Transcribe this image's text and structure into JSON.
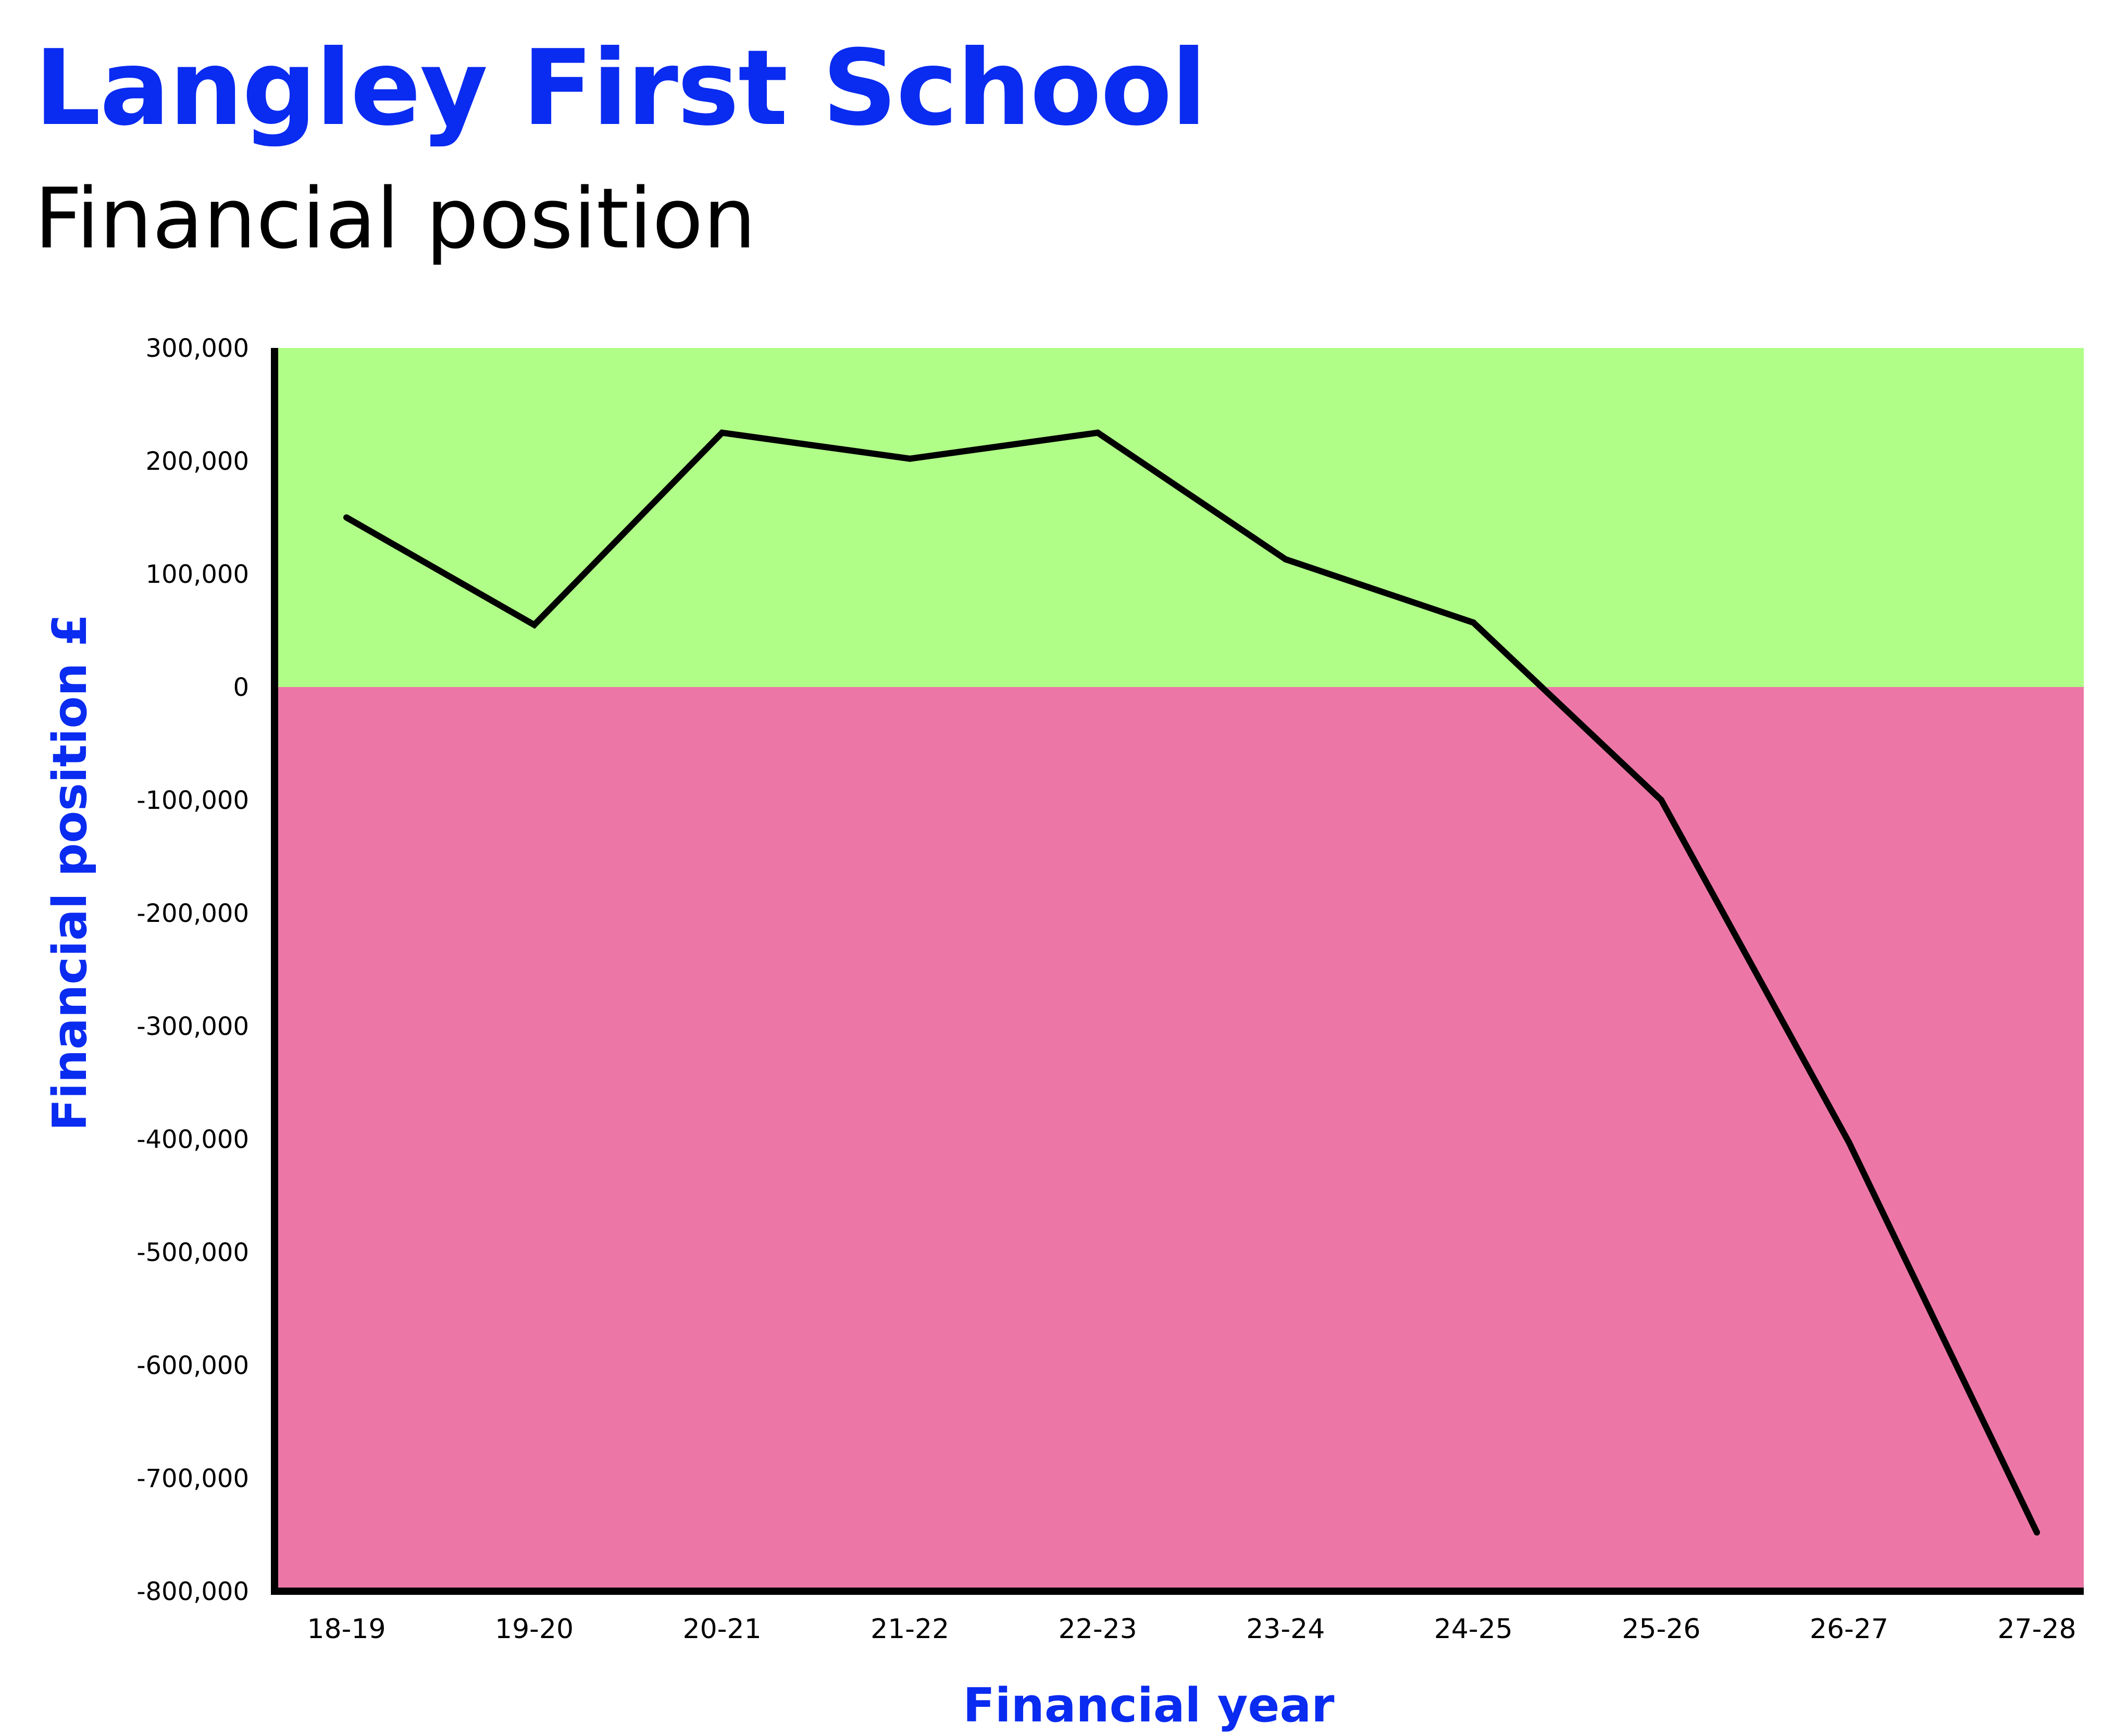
{
  "header": {
    "title": "Langley First School",
    "subtitle": "Financial position"
  },
  "colors": {
    "title": "#0a2bf0",
    "positive_zone": "#b0fe87",
    "negative_zone": "#ec77a7",
    "line": "#000000",
    "axis": "#000000"
  },
  "chart_data": {
    "type": "line",
    "xlabel": "Financial year",
    "ylabel": "Financial position £",
    "ylim": [
      -800000,
      300000
    ],
    "grid": false,
    "legend": "none",
    "zones": [
      {
        "from": 0,
        "to": 300000,
        "color": "#b0fe87"
      },
      {
        "from": -800000,
        "to": 0,
        "color": "#ec77a7"
      }
    ],
    "y_ticks": [
      {
        "value": 300000,
        "label": "300,000"
      },
      {
        "value": 200000,
        "label": "200,000"
      },
      {
        "value": 100000,
        "label": "100,000"
      },
      {
        "value": 0,
        "label": "0"
      },
      {
        "value": -100000,
        "label": "-100,000"
      },
      {
        "value": -200000,
        "label": "-200,000"
      },
      {
        "value": -300000,
        "label": "-300,000"
      },
      {
        "value": -400000,
        "label": "-400,000"
      },
      {
        "value": -500000,
        "label": "-500,000"
      },
      {
        "value": -600000,
        "label": "-600,000"
      },
      {
        "value": -700000,
        "label": "-700,000"
      },
      {
        "value": -800000,
        "label": "-800,000"
      }
    ],
    "categories": [
      "18-19",
      "19-20",
      "20-21",
      "21-22",
      "22-23",
      "23-24",
      "24-25",
      "25-26",
      "26-27",
      "27-28"
    ],
    "series": [
      {
        "values": [
          150000,
          55000,
          225000,
          202000,
          225000,
          113000,
          57000,
          -100000,
          -403000,
          -748000
        ]
      }
    ]
  }
}
